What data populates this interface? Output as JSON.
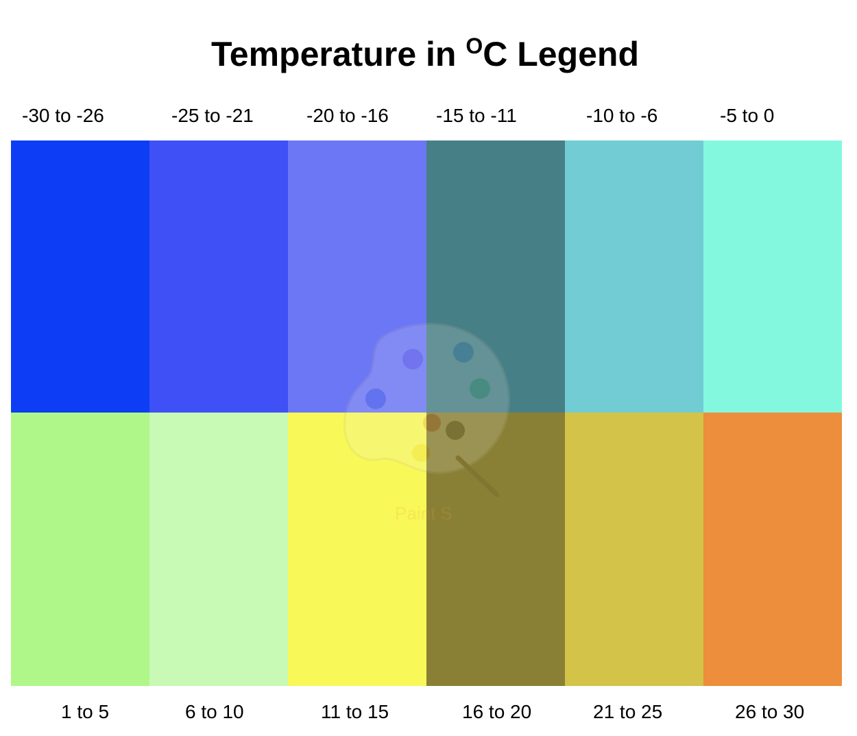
{
  "title": {
    "prefix": "Temperature in ",
    "superscript": "O",
    "suffix": "C Legend"
  },
  "legend": {
    "top_row": [
      {
        "label": "-30 to -26",
        "color": "#0d3ef5"
      },
      {
        "label": "-25 to -21",
        "color": "#3e50f6"
      },
      {
        "label": "-20 to -16",
        "color": "#6c77f6"
      },
      {
        "label": "-15 to -11",
        "color": "#477f86"
      },
      {
        "label": "-10 to -6",
        "color": "#71ccd3"
      },
      {
        "label": "-5 to 0",
        "color": "#84f8df"
      }
    ],
    "bottom_row": [
      {
        "label": "1 to 5",
        "color": "#b0f78a"
      },
      {
        "label": "6 to 10",
        "color": "#c8f9b5"
      },
      {
        "label": "11 to 15",
        "color": "#f8f858"
      },
      {
        "label": "16 to 20",
        "color": "#8a8035"
      },
      {
        "label": "21 to 25",
        "color": "#d3c348"
      },
      {
        "label": "26 to 30",
        "color": "#ed8e3c"
      }
    ]
  },
  "watermark": {
    "text": "Paint S",
    "icon": "paint-palette-icon",
    "color": "#e8a040"
  }
}
